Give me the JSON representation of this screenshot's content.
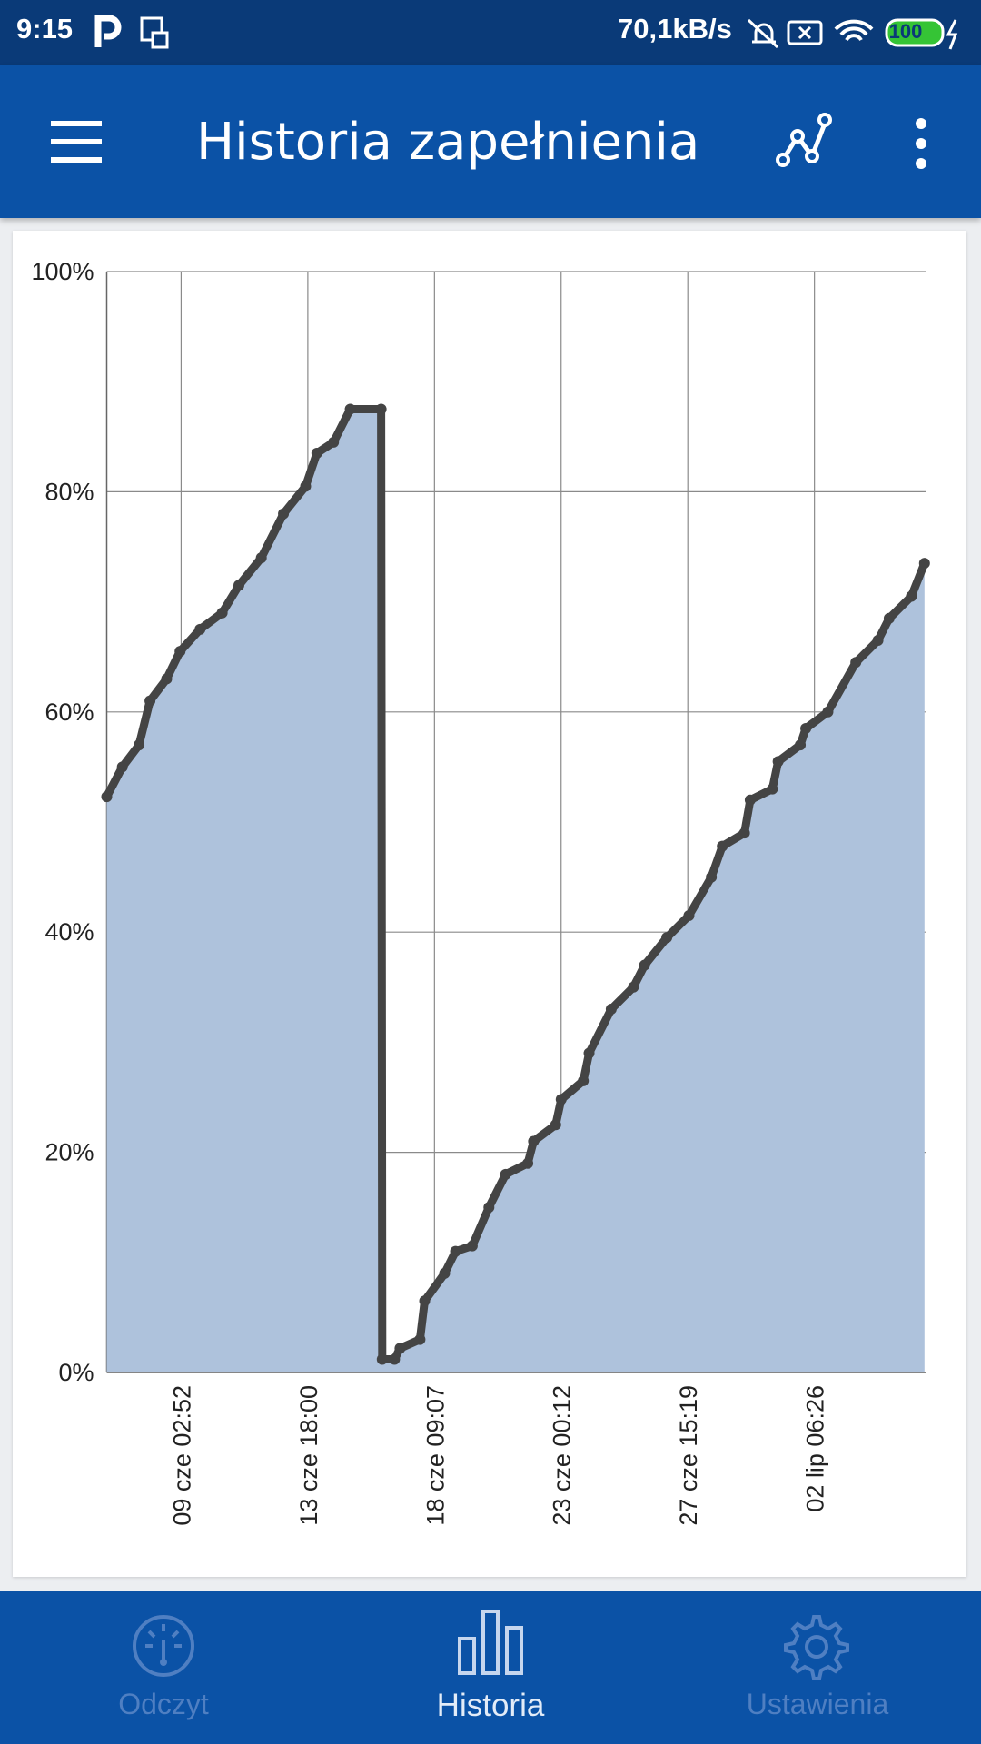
{
  "status_bar": {
    "time": "9:15",
    "speed": "70,1kB/s",
    "battery": "100"
  },
  "app_bar": {
    "title": "Historia zapełnienia"
  },
  "chart_data": {
    "type": "area",
    "x": [
      6.4,
      6.97,
      7.58,
      7.98,
      8.59,
      9.08,
      9.81,
      10.62,
      11.23,
      12.05,
      12.86,
      13.67,
      14.08,
      14.69,
      15.3,
      16.43,
      16.47,
      16.92,
      17.12,
      17.85,
      18.02,
      18.75,
      19.15,
      19.76,
      20.37,
      20.98,
      21.79,
      22.0,
      22.81,
      23.01,
      23.82,
      24.03,
      24.84,
      25.65,
      26.06,
      26.87,
      27.68,
      28.5,
      28.9,
      29.71,
      29.92,
      30.73,
      30.94,
      31.75,
      31.95,
      32.76,
      33.78,
      34.59,
      35.0,
      35.81,
      36.29
    ],
    "series": [
      {
        "color": "#444444",
        "fill": "#aec2dc",
        "values": [
          52.3,
          55,
          57,
          61,
          63,
          65.5,
          67.5,
          69,
          71.5,
          74,
          78,
          80.5,
          83.5,
          84.5,
          87.5,
          87.5,
          1.2,
          1.2,
          2.2,
          3,
          6.5,
          9,
          11,
          11.5,
          15,
          18,
          19,
          21,
          22.5,
          24.8,
          26.5,
          29,
          33,
          35,
          37,
          39.5,
          41.5,
          45,
          47.8,
          49,
          52,
          53,
          55.5,
          57,
          58.5,
          60,
          64.5,
          66.5,
          68.5,
          70.5,
          73.5
        ]
      }
    ],
    "xlim": [
      6.4,
      36.33
    ],
    "xticks": [
      {
        "value": 9.1194,
        "label": "09 cze 02:52"
      },
      {
        "value": 13.75,
        "label": "13 cze 18:00"
      },
      {
        "value": 18.3799,
        "label": "18 cze 09:07"
      },
      {
        "value": 23.0083,
        "label": "23 cze 00:12"
      },
      {
        "value": 27.6382,
        "label": "27 cze 15:19"
      },
      {
        "value": 32.2681,
        "label": "02 lip 06:26"
      }
    ],
    "ylim": [
      0,
      100
    ],
    "yticks": [
      {
        "value": 0,
        "label": "0%"
      },
      {
        "value": 20,
        "label": "20%"
      },
      {
        "value": 40,
        "label": "40%"
      },
      {
        "value": 60,
        "label": "60%"
      },
      {
        "value": 80,
        "label": "80%"
      },
      {
        "value": 100,
        "label": "100%"
      }
    ],
    "grid": true
  },
  "bottom_nav": {
    "items": [
      "Odczyt",
      "Historia",
      "Ustawienia"
    ]
  }
}
